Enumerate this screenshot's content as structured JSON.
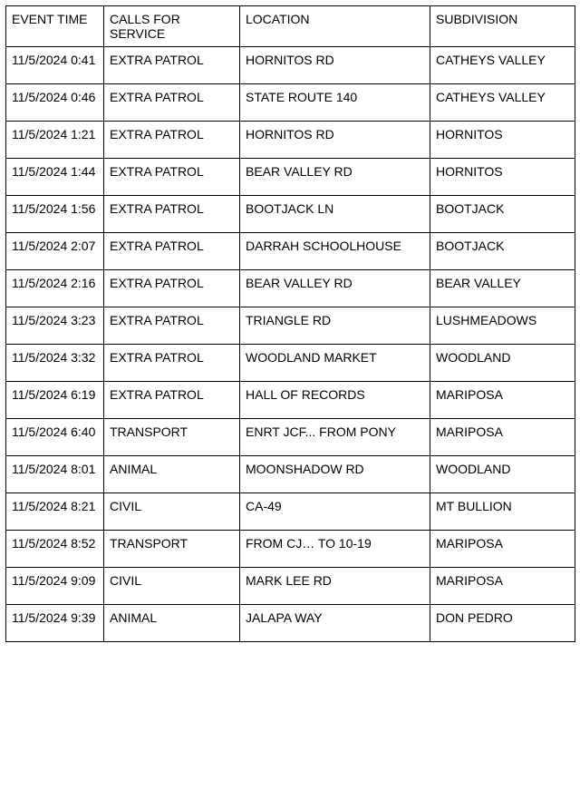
{
  "table": {
    "columns": [
      "EVENT TIME",
      "CALLS FOR SERVICE",
      "LOCATION",
      "SUBDIVISION"
    ],
    "rows": [
      [
        "11/5/2024 0:41",
        "EXTRA PATROL",
        "HORNITOS RD",
        "CATHEYS VALLEY"
      ],
      [
        "11/5/2024 0:46",
        "EXTRA PATROL",
        "STATE ROUTE 140",
        "CATHEYS VALLEY"
      ],
      [
        "11/5/2024 1:21",
        "EXTRA PATROL",
        "HORNITOS RD",
        "HORNITOS"
      ],
      [
        "11/5/2024 1:44",
        "EXTRA PATROL",
        "BEAR VALLEY RD",
        "HORNITOS"
      ],
      [
        "11/5/2024 1:56",
        "EXTRA PATROL",
        "BOOTJACK LN",
        "BOOTJACK"
      ],
      [
        "11/5/2024 2:07",
        "EXTRA PATROL",
        "DARRAH SCHOOLHOUSE",
        "BOOTJACK"
      ],
      [
        "11/5/2024 2:16",
        "EXTRA PATROL",
        "BEAR VALLEY RD",
        "BEAR VALLEY"
      ],
      [
        "11/5/2024 3:23",
        "EXTRA PATROL",
        "TRIANGLE RD",
        "LUSHMEADOWS"
      ],
      [
        "11/5/2024 3:32",
        "EXTRA PATROL",
        "WOODLAND MARKET",
        "WOODLAND"
      ],
      [
        "11/5/2024 6:19",
        "EXTRA PATROL",
        "HALL OF RECORDS",
        "MARIPOSA"
      ],
      [
        "11/5/2024 6:40",
        "TRANSPORT",
        "ENRT JCF... FROM PONY",
        "MARIPOSA"
      ],
      [
        "11/5/2024 8:01",
        "ANIMAL",
        "MOONSHADOW RD",
        "WOODLAND"
      ],
      [
        "11/5/2024 8:21",
        "CIVIL",
        "CA-49",
        "MT BULLION"
      ],
      [
        "11/5/2024 8:52",
        "TRANSPORT",
        "FROM CJ… TO 10-19",
        "MARIPOSA"
      ],
      [
        "11/5/2024 9:09",
        "CIVIL",
        "MARK LEE RD",
        "MARIPOSA"
      ],
      [
        "11/5/2024 9:39",
        "ANIMAL",
        "JALAPA WAY",
        "DON PEDRO"
      ]
    ]
  }
}
